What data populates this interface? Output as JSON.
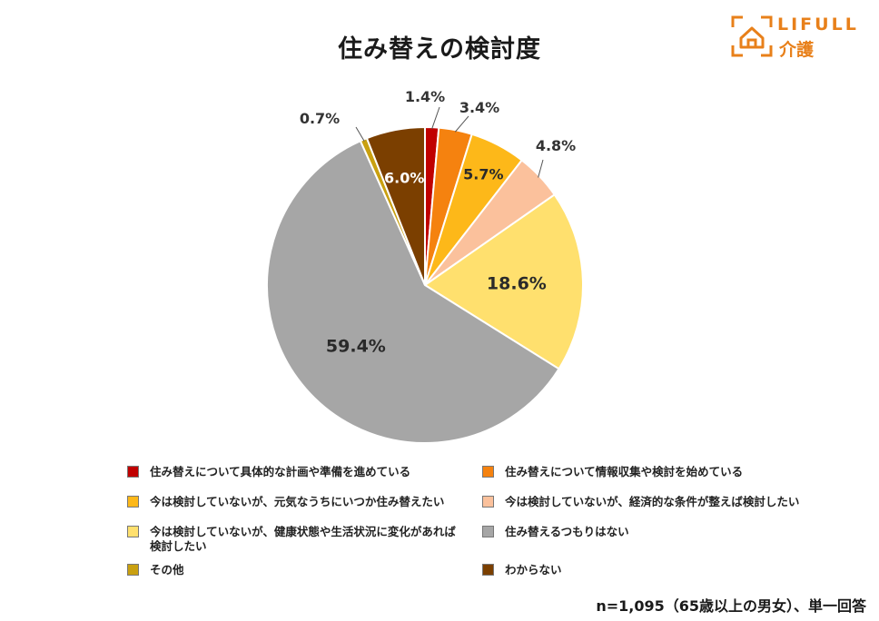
{
  "title": "住み替えの検討度",
  "logo": {
    "brand": "LIFULL",
    "sub": "介護",
    "color": "#e8801a"
  },
  "note": "n=1,095（65歳以上の男女）、単一回答",
  "chart_data": {
    "type": "pie",
    "unit": "%",
    "start": "top, clockwise",
    "slices": [
      {
        "label": "住み替えについて具体的な計画や準備を進めている",
        "value": 1.4,
        "display": "1.4%",
        "color": "#c00000",
        "label_pos": "outside"
      },
      {
        "label": "住み替えについて情報収集や検討を始めている",
        "value": 3.4,
        "display": "3.4%",
        "color": "#f5820f",
        "label_pos": "outside"
      },
      {
        "label": "今は検討していないが、元気なうちにいつか住み替えたい",
        "value": 5.7,
        "display": "5.7%",
        "color": "#fdb819",
        "label_pos": "inside"
      },
      {
        "label": "今は検討していないが、経済的な条件が整えば検討したい",
        "value": 4.8,
        "display": "4.8%",
        "color": "#fbc19c",
        "label_pos": "outside"
      },
      {
        "label": "今は検討していないが、健康状態や生活状況に変化があれば検討したい",
        "value": 18.6,
        "display": "18.6%",
        "color": "#ffe06e",
        "label_pos": "inside"
      },
      {
        "label": "住み替えるつもりはない",
        "value": 59.4,
        "display": "59.4%",
        "color": "#a6a6a6",
        "label_pos": "inside"
      },
      {
        "label": "その他",
        "value": 0.7,
        "display": "0.7%",
        "color": "#c9a010",
        "label_pos": "outside"
      },
      {
        "label": "わからない",
        "value": 6.0,
        "display": "6.0%",
        "color": "#7b3f00",
        "label_pos": "inside"
      }
    ],
    "legend": {
      "placement": "bottom",
      "columns": 2,
      "items": [
        {
          "slice": 0,
          "text": "住み替えについて具体的な計画や準備を進めている"
        },
        {
          "slice": 1,
          "text": "住み替えについて情報収集や検討を始めている"
        },
        {
          "slice": 2,
          "text": "今は検討していないが、元気なうちにいつか住み替えたい"
        },
        {
          "slice": 3,
          "text": "今は検討していないが、経済的な条件が整えば検討したい"
        },
        {
          "slice": 4,
          "text": "今は検討していないが、健康状態や生活状況に変化があれば検討したい"
        },
        {
          "slice": 5,
          "text": "住み替えるつもりはない"
        },
        {
          "slice": 6,
          "text": "その他"
        },
        {
          "slice": 7,
          "text": "わからない"
        }
      ]
    }
  }
}
